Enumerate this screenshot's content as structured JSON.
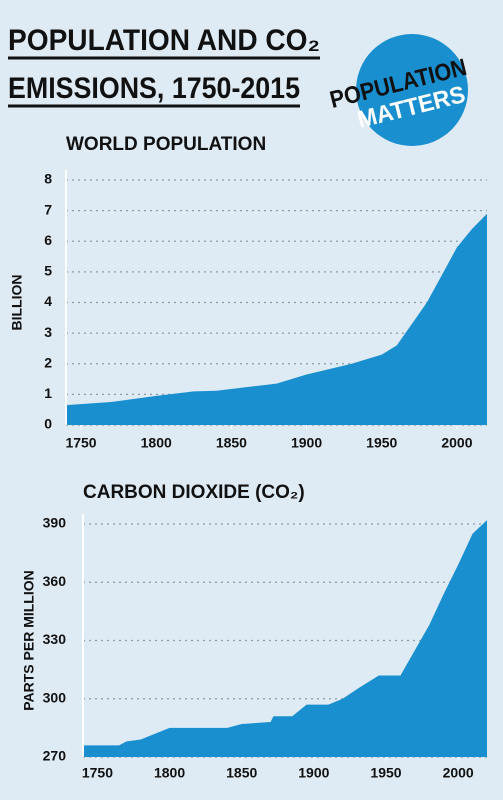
{
  "title": [
    "POPULATION AND CO₂",
    "EMISSIONS, 1750-2015"
  ],
  "logo": [
    "POPULATION",
    "MATTERS"
  ],
  "chart_data": [
    {
      "type": "area",
      "title": "WORLD POPULATION",
      "y_label": "BILLION",
      "x": [
        1740,
        1770,
        1800,
        1825,
        1840,
        1880,
        1900,
        1930,
        1950,
        1960,
        1970,
        1980,
        1990,
        2000,
        2010,
        2020
      ],
      "values": [
        0.65,
        0.75,
        0.95,
        1.1,
        1.12,
        1.35,
        1.65,
        2.0,
        2.3,
        2.6,
        3.3,
        4.0,
        4.9,
        5.8,
        6.4,
        6.9
      ],
      "color": "#1a8fd0",
      "xlim": [
        1740,
        2020
      ],
      "ylim": [
        0,
        8
      ],
      "xticks": [
        1750,
        1800,
        1850,
        1900,
        1950,
        2000
      ],
      "yticks": [
        0,
        1,
        2,
        3,
        4,
        5,
        6,
        7,
        8
      ],
      "grid": true
    },
    {
      "type": "area",
      "title": "CARBON DIOXIDE (CO₂)",
      "y_label": "PARTS PER MILLION",
      "x": [
        1740,
        1765,
        1770,
        1780,
        1800,
        1840,
        1850,
        1870,
        1872,
        1885,
        1895,
        1910,
        1920,
        1930,
        1945,
        1960,
        1970,
        1980,
        1990,
        2000,
        2010,
        2020
      ],
      "values": [
        276,
        276,
        278,
        279,
        285,
        285,
        287,
        288,
        291,
        291,
        297,
        297,
        300,
        305,
        312,
        312,
        325,
        338,
        354,
        369,
        385,
        392
      ],
      "color": "#1a8fd0",
      "xlim": [
        1740,
        2020
      ],
      "ylim": [
        270,
        390
      ],
      "xticks": [
        1750,
        1800,
        1850,
        1900,
        1950,
        2000
      ],
      "yticks": [
        270,
        300,
        330,
        360,
        390
      ],
      "grid": true
    }
  ]
}
